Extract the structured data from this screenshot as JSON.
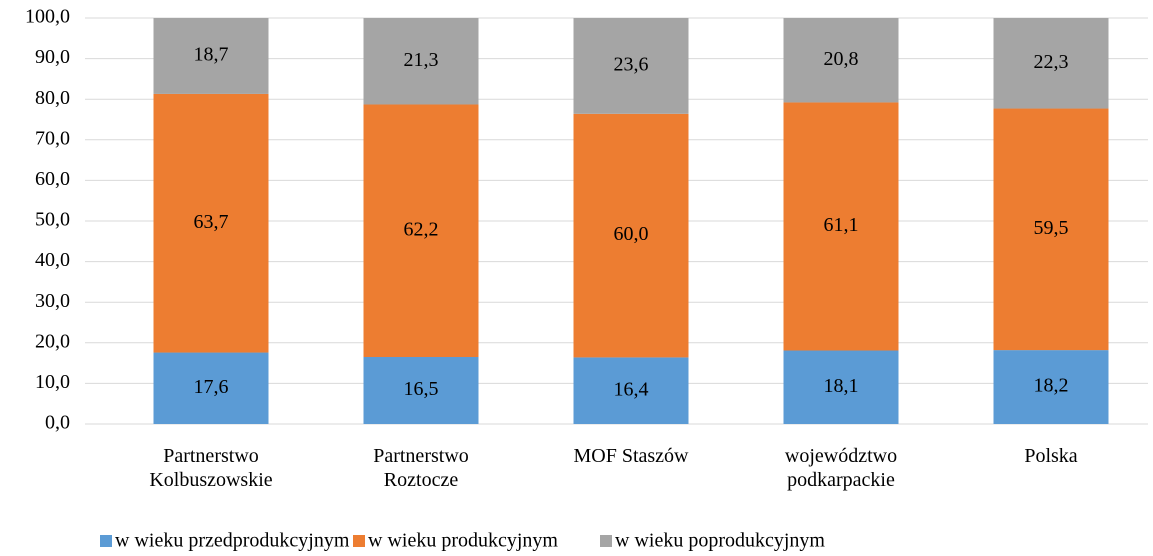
{
  "chart_data": {
    "type": "stacked_bar",
    "categories": [
      "Partnerstwo\nKolbuszowskie",
      "Partnerstwo\nRoztocze",
      "MOF Staszów",
      "województwo\npodkarpackie",
      "Polska"
    ],
    "series": [
      {
        "name": "w wieku przedprodukcyjnym",
        "color": "#5b9bd5",
        "values": [
          17.6,
          16.5,
          16.4,
          18.1,
          18.2
        ],
        "value_labels": [
          "17,6",
          "16,5",
          "16,4",
          "18,1",
          "18,2"
        ]
      },
      {
        "name": "w wieku produkcyjnym",
        "color": "#ed7d31",
        "values": [
          63.7,
          62.2,
          60.0,
          61.1,
          59.5
        ],
        "value_labels": [
          "63,7",
          "62,2",
          "60,0",
          "61,1",
          "59,5"
        ]
      },
      {
        "name": "w wieku poprodukcyjnym",
        "color": "#a5a5a5",
        "values": [
          18.7,
          21.3,
          23.6,
          20.8,
          22.3
        ],
        "value_labels": [
          "18,7",
          "21,3",
          "23,6",
          "20,8",
          "22,3"
        ]
      }
    ],
    "ylim": [
      0,
      100
    ],
    "yticks": [
      {
        "value": 0,
        "label": "0,0"
      },
      {
        "value": 10,
        "label": "10,0"
      },
      {
        "value": 20,
        "label": "20,0"
      },
      {
        "value": 30,
        "label": "30,0"
      },
      {
        "value": 40,
        "label": "40,0"
      },
      {
        "value": 50,
        "label": "50,0"
      },
      {
        "value": 60,
        "label": "60,0"
      },
      {
        "value": 70,
        "label": "70,0"
      },
      {
        "value": 80,
        "label": "80,0"
      },
      {
        "value": 90,
        "label": "90,0"
      },
      {
        "value": 100,
        "label": "100,0"
      }
    ],
    "grid": true,
    "legend": "bottom"
  }
}
